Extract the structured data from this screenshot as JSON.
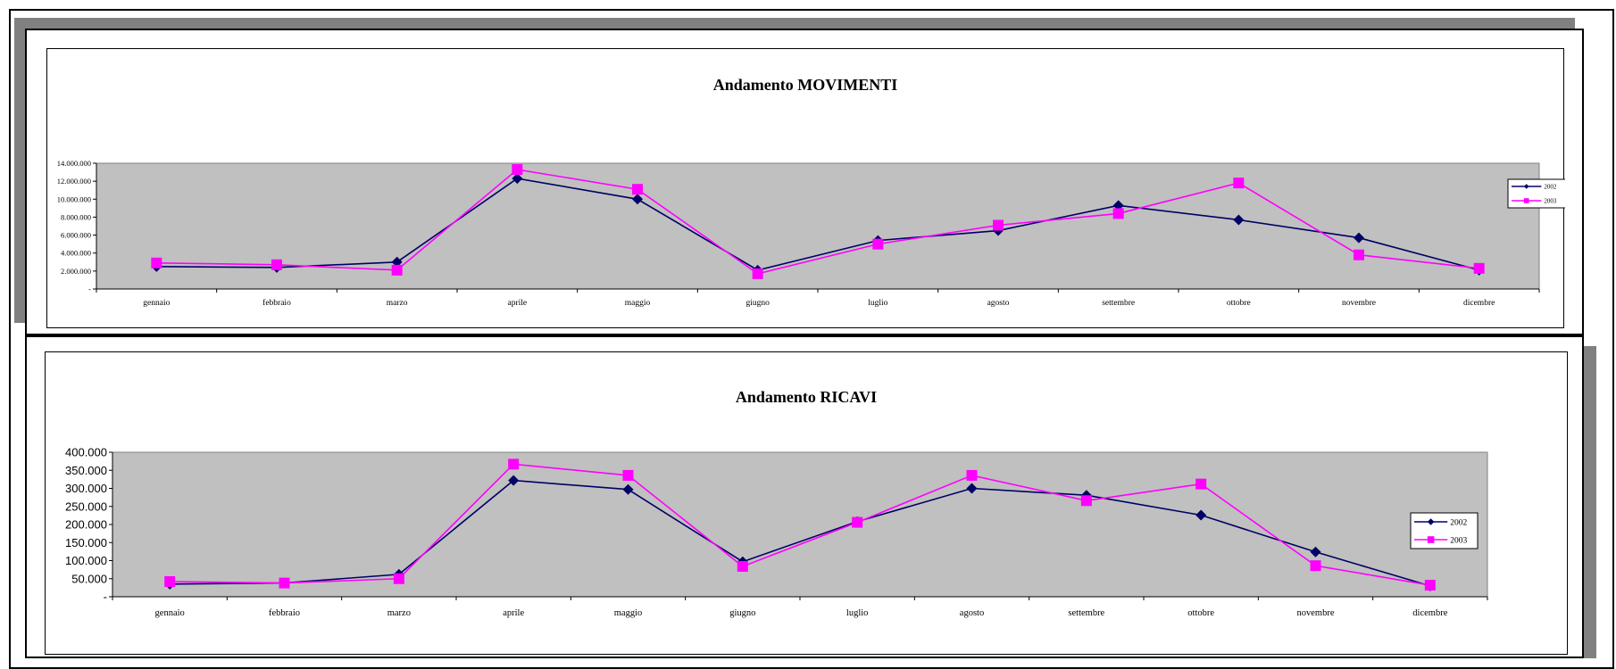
{
  "colors": {
    "series_2002": "#000066",
    "series_2003": "#ff00ff",
    "plot_background": "#c0c0c0",
    "shadow": "#808080"
  },
  "chart_data": [
    {
      "type": "line",
      "title": "Andamento MOVIMENTI",
      "xlabel": "",
      "ylabel": "",
      "categories": [
        "gennaio",
        "febbraio",
        "marzo",
        "aprile",
        "maggio",
        "giugno",
        "luglio",
        "agosto",
        "settembre",
        "ottobre",
        "novembre",
        "dicembre"
      ],
      "ylim": [
        0,
        14000000
      ],
      "yticks": [
        0,
        2000000,
        4000000,
        6000000,
        8000000,
        10000000,
        12000000,
        14000000
      ],
      "ytick_labels": [
        "-",
        "2.000.000",
        "4.000.000",
        "6.000.000",
        "8.000.000",
        "10.000.000",
        "12.000.000",
        "14.000.000"
      ],
      "grid": false,
      "legend_position": "right",
      "series": [
        {
          "name": "2002",
          "marker": "diamond",
          "color": "#000066",
          "values": [
            2500000,
            2400000,
            3000000,
            12300000,
            10000000,
            2100000,
            5400000,
            6500000,
            9300000,
            7700000,
            5700000,
            2100000
          ]
        },
        {
          "name": "2003",
          "marker": "square",
          "color": "#ff00ff",
          "values": [
            2900000,
            2700000,
            2100000,
            13300000,
            11100000,
            1700000,
            5000000,
            7100000,
            8400000,
            11800000,
            3800000,
            2300000
          ]
        }
      ]
    },
    {
      "type": "line",
      "title": "Andamento RICAVI",
      "xlabel": "",
      "ylabel": "",
      "categories": [
        "gennaio",
        "febbraio",
        "marzo",
        "aprile",
        "maggio",
        "giugno",
        "luglio",
        "agosto",
        "settembre",
        "ottobre",
        "novembre",
        "dicembre"
      ],
      "ylim": [
        0,
        400000
      ],
      "yticks": [
        0,
        50000,
        100000,
        150000,
        200000,
        250000,
        300000,
        350000,
        400000
      ],
      "ytick_labels": [
        "-",
        "50.000",
        "100.000",
        "150.000",
        "200.000",
        "250.000",
        "300.000",
        "350.000",
        "400.000"
      ],
      "grid": false,
      "legend_position": "right",
      "series": [
        {
          "name": "2002",
          "marker": "diamond",
          "color": "#000066",
          "values": [
            35000,
            38000,
            62000,
            322000,
            297000,
            97000,
            208000,
            300000,
            281000,
            226000,
            124000,
            30000
          ]
        },
        {
          "name": "2003",
          "marker": "square",
          "color": "#ff00ff",
          "values": [
            42000,
            38000,
            50000,
            367000,
            336000,
            84000,
            206000,
            336000,
            266000,
            312000,
            86000,
            32000
          ]
        }
      ]
    }
  ]
}
